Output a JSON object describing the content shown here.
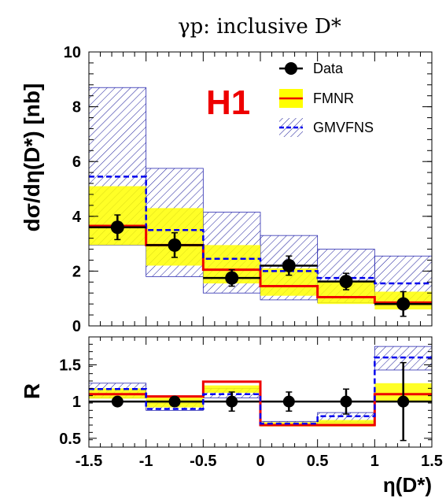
{
  "chart_data": [
    {
      "type": "step",
      "title": "γp:  inclusive D*",
      "ylabel": "dσ/dη(D*) [nb]",
      "xlabel": "",
      "xlim": [
        -1.5,
        1.5
      ],
      "ylim": [
        0,
        10
      ],
      "y_ticks": [
        "0",
        "2",
        "4",
        "6",
        "8",
        "10"
      ],
      "experiment_label": "H1",
      "bin_edges": [
        -1.5,
        -1.0,
        -0.5,
        0.0,
        0.5,
        1.0,
        1.5
      ],
      "series": [
        {
          "name": "Data",
          "x": [
            -1.25,
            -0.75,
            -0.25,
            0.25,
            0.75,
            1.25
          ],
          "values": [
            3.6,
            2.95,
            1.75,
            2.2,
            1.62,
            0.8
          ],
          "err_low": [
            0.45,
            0.45,
            0.3,
            0.35,
            0.3,
            0.45
          ],
          "err_high": [
            0.45,
            0.45,
            0.3,
            0.35,
            0.3,
            0.45
          ]
        },
        {
          "name": "FMNR",
          "values": [
            3.65,
            2.95,
            2.05,
            1.45,
            1.05,
            0.85
          ],
          "band_low": [
            2.95,
            2.2,
            1.55,
            1.1,
            0.8,
            0.6
          ],
          "band_high": [
            5.1,
            4.3,
            2.95,
            2.1,
            1.6,
            1.25
          ],
          "line_color": "#ee0000",
          "band_color": "#ffff00"
        },
        {
          "name": "GMVFNS",
          "values": [
            5.45,
            3.5,
            2.45,
            2.0,
            1.75,
            1.55
          ],
          "band_low": [
            2.95,
            1.8,
            1.2,
            0.95,
            0.85,
            0.75
          ],
          "band_high": [
            8.7,
            5.75,
            4.15,
            3.3,
            2.8,
            2.55
          ],
          "line_color": "#0000ee",
          "hatch_color": "#1a1a9a"
        }
      ]
    },
    {
      "type": "step",
      "ylabel": "R",
      "xlabel": "η(D*)",
      "xlim": [
        -1.5,
        1.5
      ],
      "ylim": [
        0.38,
        1.88
      ],
      "y_ticks": [
        "0.5",
        "1",
        "1.5"
      ],
      "x_ticks": [
        "-1.5",
        "-1",
        "-0.5",
        "0",
        "0.5",
        "1",
        "1.5"
      ],
      "reference_line": 1,
      "series": [
        {
          "name": "Data",
          "x": [
            -1.25,
            -0.75,
            -0.25,
            0.25,
            0.75,
            1.25
          ],
          "values": [
            1.0,
            1.0,
            1.0,
            1.0,
            1.0,
            1.0
          ],
          "err_low": [
            0.0,
            0.0,
            0.13,
            0.13,
            0.17,
            0.53
          ],
          "err_high": [
            0.0,
            0.0,
            0.13,
            0.13,
            0.17,
            0.53
          ]
        },
        {
          "name": "FMNR",
          "values": [
            1.1,
            1.07,
            1.27,
            0.68,
            0.68,
            1.1
          ],
          "band_low": [
            1.04,
            0.92,
            1.12,
            0.66,
            0.66,
            0.99
          ],
          "band_high": [
            1.18,
            1.07,
            1.22,
            0.72,
            0.75,
            1.25
          ],
          "line_color": "#ee0000",
          "band_color": "#ffff00"
        },
        {
          "name": "GMVFNS",
          "values": [
            1.17,
            0.9,
            1.1,
            0.7,
            0.8,
            1.6
          ],
          "band_low": [
            1.05,
            0.88,
            1.05,
            0.68,
            0.72,
            1.43
          ],
          "band_high": [
            1.25,
            0.98,
            1.18,
            0.73,
            0.85,
            1.75
          ],
          "line_color": "#0000ee",
          "hatch_color": "#1a1a9a"
        }
      ]
    }
  ]
}
